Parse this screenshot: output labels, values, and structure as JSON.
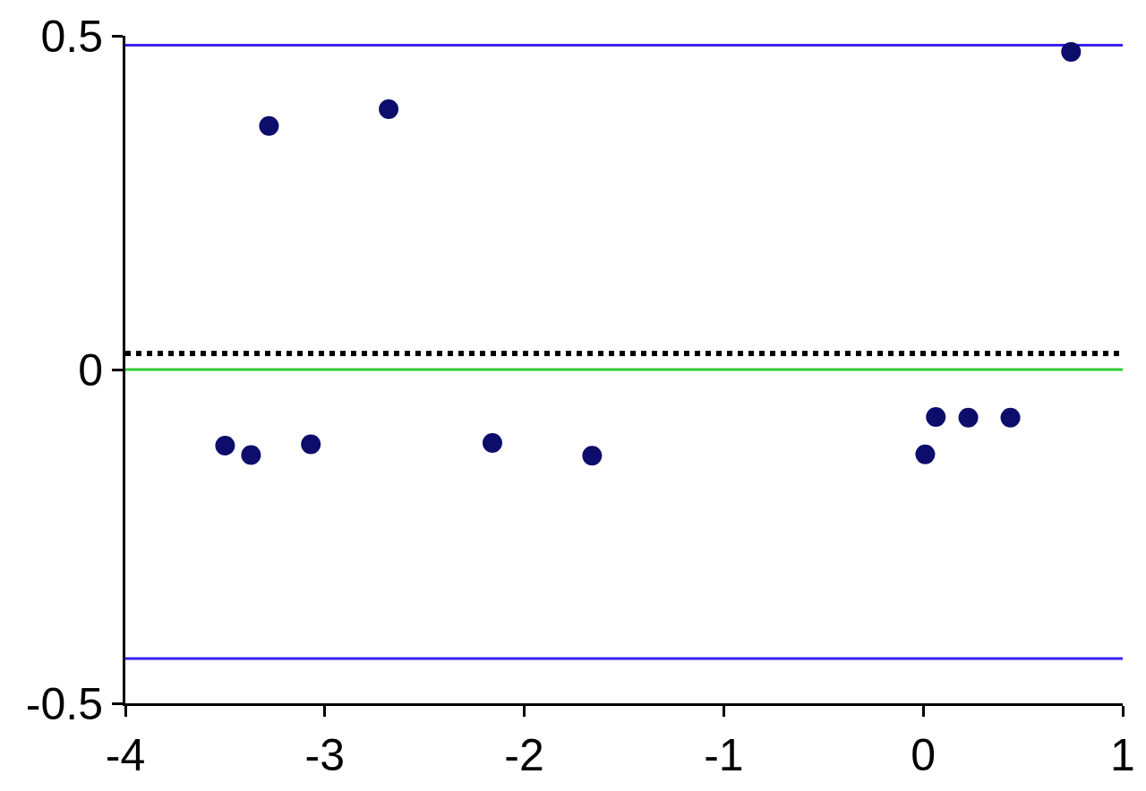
{
  "chart_data": {
    "type": "scatter",
    "xlim": [
      -4,
      1
    ],
    "xticks": [
      -4,
      -3,
      -2,
      -1,
      0,
      1
    ],
    "ylim": [
      -0.5,
      0.5
    ],
    "yticks": [
      -0.5,
      0,
      0.5
    ],
    "grid": false,
    "series": [
      {
        "type": "scatter",
        "color": "#0d0d6b",
        "marker": "circle",
        "x": [
          -3.5,
          -3.37,
          -3.28,
          -3.07,
          -2.68,
          -2.16,
          -1.66,
          0.01,
          0.063,
          0.226,
          0.437,
          0.741
        ],
        "values": [
          -0.114,
          -0.128,
          0.365,
          -0.112,
          0.39,
          -0.11,
          -0.129,
          -0.127,
          -0.071,
          -0.072,
          -0.072,
          0.476
        ]
      },
      {
        "type": "line",
        "color": "#3a22f0",
        "line_style": "solid",
        "x": [
          -4,
          1
        ],
        "values": [
          0.486,
          0.486
        ]
      },
      {
        "type": "line",
        "color": "#3a22f0",
        "line_style": "solid",
        "x": [
          -4,
          1
        ],
        "values": [
          -0.433,
          -0.433
        ]
      },
      {
        "type": "line",
        "color": "#33cc33",
        "line_style": "solid",
        "x": [
          -4,
          1
        ],
        "values": [
          0,
          0
        ]
      },
      {
        "type": "line",
        "color": "#000000",
        "line_style": "dotted",
        "x": [
          -4,
          1
        ],
        "values": [
          0.024,
          0.024
        ]
      }
    ]
  }
}
